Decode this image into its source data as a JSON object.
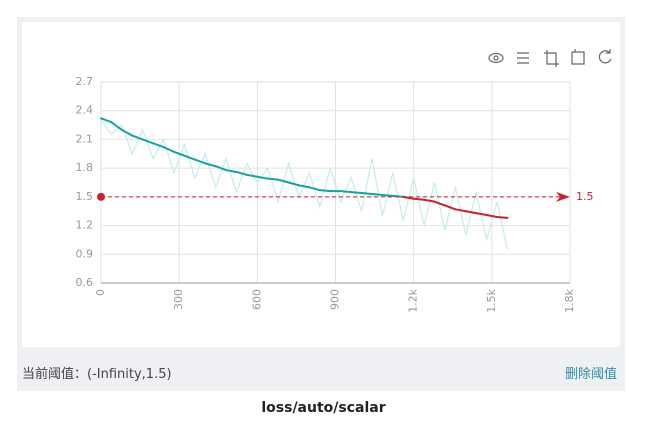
{
  "chart_data": {
    "type": "line",
    "title": "loss/auto/scalar",
    "x": [
      0,
      40,
      80,
      120,
      160,
      200,
      240,
      280,
      320,
      360,
      400,
      440,
      480,
      520,
      560,
      600,
      640,
      680,
      720,
      760,
      800,
      840,
      880,
      920,
      960,
      1000,
      1040,
      1080,
      1120,
      1160,
      1200,
      1240,
      1280,
      1320,
      1360,
      1400,
      1440,
      1480,
      1520,
      1560
    ],
    "series": [
      {
        "color": "#c5eceb",
        "values": [
          2.3,
          2.15,
          2.25,
          1.95,
          2.2,
          1.9,
          2.1,
          1.75,
          2.05,
          1.7,
          1.95,
          1.6,
          1.9,
          1.55,
          1.85,
          1.65,
          1.8,
          1.45,
          1.85,
          1.5,
          1.75,
          1.4,
          1.8,
          1.45,
          1.7,
          1.35,
          1.9,
          1.3,
          1.75,
          1.25,
          1.7,
          1.2,
          1.65,
          1.15,
          1.6,
          1.1,
          1.55,
          1.05,
          1.45,
          0.95
        ]
      },
      {
        "color": "#17a3a1",
        "below_color": "#c8232c",
        "values": [
          2.32,
          2.28,
          2.2,
          2.14,
          2.1,
          2.06,
          2.02,
          1.97,
          1.93,
          1.89,
          1.85,
          1.82,
          1.78,
          1.76,
          1.73,
          1.71,
          1.69,
          1.68,
          1.65,
          1.62,
          1.6,
          1.57,
          1.56,
          1.56,
          1.55,
          1.54,
          1.53,
          1.52,
          1.51,
          1.5,
          1.48,
          1.47,
          1.45,
          1.41,
          1.37,
          1.35,
          1.33,
          1.31,
          1.29,
          1.28
        ]
      }
    ],
    "threshold": {
      "value": 1.5,
      "color": "#c8232c"
    },
    "xlim": [
      0,
      1800
    ],
    "xticks": [
      0,
      300,
      600,
      900,
      {
        "value": 1200,
        "label": "1.2k"
      },
      {
        "value": 1500,
        "label": "1.5k"
      },
      {
        "value": 1800,
        "label": "1.8k"
      }
    ],
    "ylim": [
      0.6,
      2.7
    ],
    "yticks": [
      0.6,
      0.9,
      1.2,
      1.5,
      1.8,
      2.1,
      2.4,
      2.7
    ],
    "grid": true
  },
  "footer": {
    "current": "当前阈值：(-Infinity,1.5)",
    "delete": "删除阈值"
  }
}
